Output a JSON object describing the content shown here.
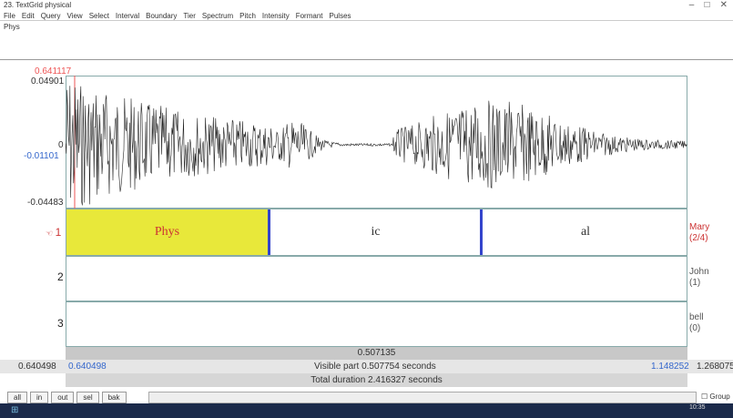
{
  "window": {
    "title": "23. TextGrid physical",
    "menu": [
      "File",
      "Edit",
      "Query",
      "View",
      "Select",
      "Interval",
      "Boundary",
      "Tier",
      "Spectrum",
      "Pitch",
      "Intensity",
      "Formant",
      "Pulses"
    ],
    "text_field": "Phys"
  },
  "sound": {
    "cursor_time": "0.641117",
    "amplitude_max": "0.04901",
    "amplitude_zero": "0",
    "amplitude_cursor": "-0.01101",
    "amplitude_min": "-0.04483"
  },
  "tiers": [
    {
      "number": "1",
      "name": "Mary",
      "count": "(2/4)",
      "intervals": [
        "Phys",
        "ic",
        "al"
      ]
    },
    {
      "number": "2",
      "name": "John",
      "count": "(1)"
    },
    {
      "number": "3",
      "name": "bell",
      "count": "(0)"
    }
  ],
  "time": {
    "selection_duration": "0.507135",
    "window_start": "0.640498",
    "visible_start": "0.640498",
    "visible_part": "Visible part 0.507754 seconds",
    "visible_end": "1.148252",
    "window_end": "1.268075",
    "total_duration": "Total duration 2.416327 seconds"
  },
  "buttons": [
    "all",
    "in",
    "out",
    "sel",
    "bak"
  ],
  "group_label": "Group",
  "clock": "10:35"
}
